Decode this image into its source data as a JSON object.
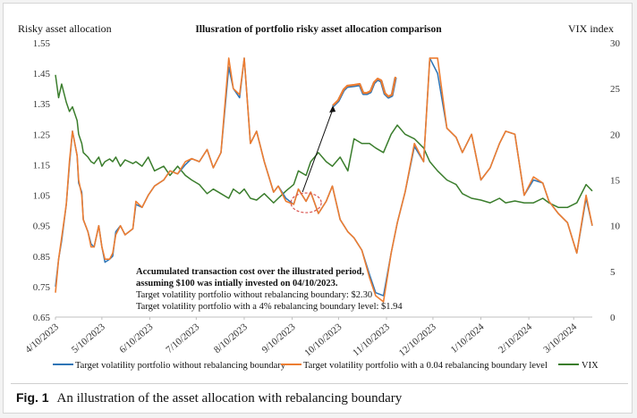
{
  "figure": {
    "caption_label": "Fig. 1",
    "caption_text": "An illustration of the asset allocation with rebalancing boundary"
  },
  "chart_data": {
    "type": "line",
    "title": "Illusration of portfolio risky asset allocation comparison",
    "ylabel_left": "Risky asset allocation",
    "ylabel_right": "VIX index",
    "ylim_left": [
      0.65,
      1.55
    ],
    "ylim_right": [
      0,
      30
    ],
    "yticks_left": [
      "0.65",
      "0.75",
      "0.85",
      "0.95",
      "1.05",
      "1.15",
      "1.25",
      "1.35",
      "1.45",
      "1.55"
    ],
    "yticks_right": [
      "0",
      "5",
      "10",
      "15",
      "20",
      "25",
      "30"
    ],
    "xlim": [
      "2023-04-10",
      "2024-03-22"
    ],
    "xticks": [
      "4/10/2023",
      "5/10/2023",
      "6/10/2023",
      "7/10/2023",
      "8/10/2023",
      "9/10/2023",
      "10/10/2023",
      "11/10/2023",
      "12/10/2023",
      "1/10/2024",
      "2/10/2024",
      "3/10/2024"
    ],
    "xtick_dates": [
      "2023-04-10",
      "2023-05-10",
      "2023-06-10",
      "2023-07-10",
      "2023-08-10",
      "2023-09-10",
      "2023-10-10",
      "2023-11-10",
      "2023-12-10",
      "2024-01-10",
      "2024-02-10",
      "2024-03-10"
    ],
    "legend_position": "bottom",
    "grid": false,
    "annotation": {
      "lines": [
        "Accumulated transaction cost over the illustrated period,",
        "assuming $100 was intially invested on 04/10/2023.",
        "Target volatility portfolio without rebalancing boundary: $2.30",
        "Target volatility portfolio with a 4% rebalancing boundary level: $1.94"
      ]
    },
    "series": [
      {
        "name": "Target volatility portfolio without rebalancing boundary",
        "axis": "left",
        "color": "#2e75b6",
        "x": [
          "2023-04-10",
          "2023-04-12",
          "2023-04-14",
          "2023-04-17",
          "2023-04-19",
          "2023-04-21",
          "2023-04-24",
          "2023-04-25",
          "2023-04-27",
          "2023-04-28",
          "2023-05-01",
          "2023-05-03",
          "2023-05-05",
          "2023-05-08",
          "2023-05-10",
          "2023-05-12",
          "2023-05-15",
          "2023-05-17",
          "2023-05-19",
          "2023-05-22",
          "2023-05-25",
          "2023-05-30",
          "2023-06-01",
          "2023-06-05",
          "2023-06-09",
          "2023-06-13",
          "2023-06-19",
          "2023-06-23",
          "2023-06-28",
          "2023-07-03",
          "2023-07-07",
          "2023-07-12",
          "2023-07-17",
          "2023-07-21",
          "2023-07-26",
          "2023-07-31",
          "2023-08-03",
          "2023-08-07",
          "2023-08-10",
          "2023-08-14",
          "2023-08-18",
          "2023-08-23",
          "2023-08-29",
          "2023-09-01",
          "2023-09-06",
          "2023-09-11",
          "2023-09-14",
          "2023-09-19",
          "2023-09-22",
          "2023-09-27",
          "2023-10-02",
          "2023-10-06",
          "2023-10-11",
          "2023-10-16",
          "2023-10-20",
          "2023-10-25",
          "2023-10-30",
          "2023-11-03",
          "2023-11-08",
          "2023-11-13",
          "2023-11-17",
          "2023-11-22",
          "2023-11-28",
          "2023-12-04",
          "2023-12-08",
          "2023-12-13",
          "2023-12-19",
          "2023-12-25",
          "2023-12-29",
          "2024-01-04",
          "2024-01-10",
          "2024-01-16",
          "2024-01-22",
          "2024-01-26",
          "2024-02-01",
          "2024-02-07",
          "2024-02-13",
          "2024-02-19",
          "2024-02-23",
          "2024-02-29",
          "2024-03-06",
          "2024-03-12",
          "2024-03-18",
          "2024-03-22"
        ],
        "values": [
          0.75,
          0.84,
          0.9,
          1.02,
          1.15,
          1.26,
          1.18,
          1.09,
          1.06,
          0.97,
          0.93,
          0.89,
          0.88,
          0.95,
          0.88,
          0.83,
          0.84,
          0.85,
          0.93,
          0.95,
          0.92,
          0.94,
          1.02,
          1.01,
          1.05,
          1.08,
          1.1,
          1.13,
          1.12,
          1.15,
          1.17,
          1.16,
          1.2,
          1.14,
          1.19,
          1.47,
          1.4,
          1.37,
          1.5,
          1.22,
          1.26,
          1.16,
          1.06,
          1.08,
          1.04,
          1.02,
          1.07,
          1.03,
          1.06,
          0.99,
          1.03,
          1.08,
          0.97,
          0.93,
          0.91,
          0.87,
          0.79,
          0.73,
          0.72,
          0.86,
          0.96,
          1.06,
          1.21,
          1.16,
          1.5,
          1.45,
          1.27,
          1.24,
          1.19,
          1.25,
          1.1,
          1.14,
          1.22,
          1.26,
          1.25,
          1.05,
          1.1,
          1.09,
          1.03,
          0.99,
          0.96,
          0.86,
          1.04,
          0.95
        ]
      },
      {
        "name": "Target volatility portfolio with a 0.04 rebalancing boundary level",
        "axis": "left",
        "color": "#ed7d31",
        "x": [
          "2023-04-10",
          "2023-04-12",
          "2023-04-14",
          "2023-04-17",
          "2023-04-19",
          "2023-04-21",
          "2023-04-24",
          "2023-04-25",
          "2023-04-27",
          "2023-04-28",
          "2023-05-01",
          "2023-05-03",
          "2023-05-05",
          "2023-05-08",
          "2023-05-10",
          "2023-05-12",
          "2023-05-15",
          "2023-05-17",
          "2023-05-19",
          "2023-05-22",
          "2023-05-25",
          "2023-05-30",
          "2023-06-01",
          "2023-06-05",
          "2023-06-09",
          "2023-06-13",
          "2023-06-19",
          "2023-06-23",
          "2023-06-28",
          "2023-07-03",
          "2023-07-07",
          "2023-07-12",
          "2023-07-17",
          "2023-07-21",
          "2023-07-26",
          "2023-07-31",
          "2023-08-03",
          "2023-08-07",
          "2023-08-10",
          "2023-08-14",
          "2023-08-18",
          "2023-08-23",
          "2023-08-29",
          "2023-09-01",
          "2023-09-06",
          "2023-09-11",
          "2023-09-14",
          "2023-09-19",
          "2023-09-22",
          "2023-09-27",
          "2023-10-02",
          "2023-10-06",
          "2023-10-11",
          "2023-10-16",
          "2023-10-20",
          "2023-10-25",
          "2023-10-30",
          "2023-11-03",
          "2023-11-08",
          "2023-11-13",
          "2023-11-17",
          "2023-11-22",
          "2023-11-28",
          "2023-12-04",
          "2023-12-08",
          "2023-12-13",
          "2023-12-19",
          "2023-12-25",
          "2023-12-29",
          "2024-01-04",
          "2024-01-10",
          "2024-01-16",
          "2024-01-22",
          "2024-01-26",
          "2024-02-01",
          "2024-02-07",
          "2024-02-13",
          "2024-02-19",
          "2024-02-23",
          "2024-02-29",
          "2024-03-06",
          "2024-03-12",
          "2024-03-18",
          "2024-03-22"
        ],
        "values": [
          0.73,
          0.84,
          0.91,
          1.02,
          1.16,
          1.26,
          1.18,
          1.1,
          1.05,
          0.97,
          0.93,
          0.88,
          0.88,
          0.95,
          0.88,
          0.84,
          0.84,
          0.86,
          0.92,
          0.95,
          0.92,
          0.94,
          1.03,
          1.01,
          1.05,
          1.08,
          1.1,
          1.13,
          1.12,
          1.16,
          1.17,
          1.16,
          1.2,
          1.14,
          1.19,
          1.5,
          1.4,
          1.38,
          1.5,
          1.22,
          1.26,
          1.16,
          1.06,
          1.08,
          1.03,
          1.02,
          1.07,
          1.03,
          1.06,
          0.99,
          1.03,
          1.08,
          0.97,
          0.93,
          0.91,
          0.87,
          0.78,
          0.72,
          0.7,
          0.86,
          0.96,
          1.06,
          1.22,
          1.16,
          1.5,
          1.5,
          1.27,
          1.24,
          1.19,
          1.25,
          1.1,
          1.14,
          1.22,
          1.26,
          1.25,
          1.05,
          1.11,
          1.09,
          1.03,
          0.99,
          0.96,
          0.86,
          1.05,
          0.95
        ]
      },
      {
        "name": "VIX",
        "axis": "right",
        "color": "#3a7d2c",
        "x": [
          "2023-04-10",
          "2023-04-12",
          "2023-04-14",
          "2023-04-17",
          "2023-04-19",
          "2023-04-21",
          "2023-04-24",
          "2023-04-25",
          "2023-04-27",
          "2023-04-28",
          "2023-05-01",
          "2023-05-03",
          "2023-05-05",
          "2023-05-08",
          "2023-05-10",
          "2023-05-12",
          "2023-05-15",
          "2023-05-17",
          "2023-05-19",
          "2023-05-22",
          "2023-05-25",
          "2023-05-30",
          "2023-06-01",
          "2023-06-05",
          "2023-06-09",
          "2023-06-13",
          "2023-06-19",
          "2023-06-23",
          "2023-06-28",
          "2023-07-03",
          "2023-07-07",
          "2023-07-12",
          "2023-07-17",
          "2023-07-21",
          "2023-07-26",
          "2023-07-31",
          "2023-08-03",
          "2023-08-07",
          "2023-08-10",
          "2023-08-14",
          "2023-08-18",
          "2023-08-23",
          "2023-08-29",
          "2023-09-01",
          "2023-09-06",
          "2023-09-11",
          "2023-09-14",
          "2023-09-19",
          "2023-09-22",
          "2023-09-27",
          "2023-10-02",
          "2023-10-06",
          "2023-10-11",
          "2023-10-16",
          "2023-10-20",
          "2023-10-25",
          "2023-10-30",
          "2023-11-03",
          "2023-11-08",
          "2023-11-13",
          "2023-11-17",
          "2023-11-22",
          "2023-11-28",
          "2023-12-04",
          "2023-12-08",
          "2023-12-13",
          "2023-12-19",
          "2023-12-25",
          "2023-12-29",
          "2024-01-04",
          "2024-01-10",
          "2024-01-16",
          "2024-01-22",
          "2024-01-26",
          "2024-02-01",
          "2024-02-07",
          "2024-02-13",
          "2024-02-19",
          "2024-02-23",
          "2024-02-29",
          "2024-03-06",
          "2024-03-12",
          "2024-03-18",
          "2024-03-22"
        ],
        "values": [
          26.5,
          24.0,
          25.5,
          23.5,
          22.5,
          23.0,
          21.5,
          20.0,
          19.0,
          18.0,
          17.5,
          17.0,
          16.8,
          17.5,
          16.5,
          17.0,
          17.3,
          17.0,
          17.5,
          16.5,
          17.2,
          16.8,
          17.0,
          16.5,
          17.5,
          16.0,
          16.5,
          15.5,
          16.5,
          15.5,
          15.0,
          14.5,
          13.5,
          14.0,
          13.5,
          13.0,
          14.0,
          13.5,
          14.0,
          13.0,
          12.8,
          13.5,
          12.5,
          13.0,
          13.8,
          14.5,
          16.0,
          15.5,
          17.0,
          18.0,
          17.0,
          16.5,
          17.5,
          16.0,
          19.5,
          19.0,
          19.0,
          18.5,
          18.0,
          20.0,
          21.0,
          20.0,
          19.5,
          18.5,
          17.0,
          16.0,
          15.0,
          14.5,
          13.5,
          13.0,
          12.8,
          12.5,
          13.0,
          12.5,
          12.7,
          12.5,
          12.5,
          13.0,
          12.5,
          12.0,
          12.0,
          12.5,
          14.5,
          13.8
        ]
      }
    ]
  }
}
